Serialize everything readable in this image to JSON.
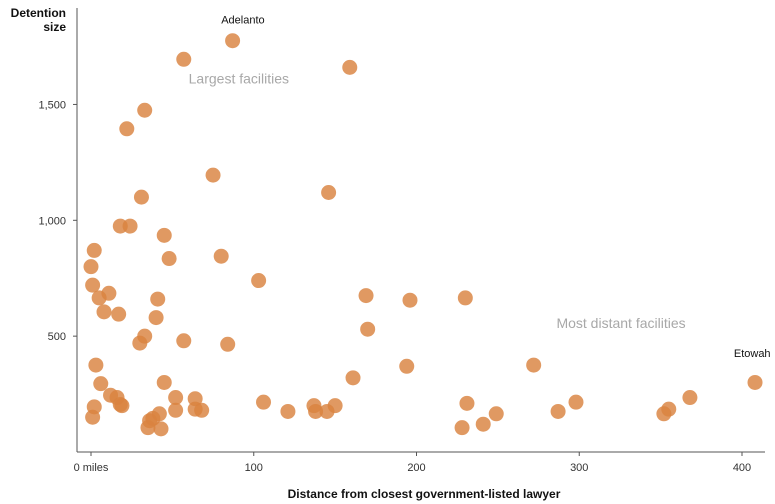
{
  "chart_data": {
    "type": "scatter",
    "ylabel_lines": [
      "Detention",
      "size"
    ],
    "xlabel": "Distance from closest government-listed lawyer",
    "xlim": [
      0,
      410
    ],
    "ylim": [
      0,
      1800
    ],
    "xticks": [
      {
        "value": 0,
        "label": "0 miles"
      },
      {
        "value": 100,
        "label": "100"
      },
      {
        "value": 200,
        "label": "200"
      },
      {
        "value": 300,
        "label": "300"
      },
      {
        "value": 400,
        "label": "400"
      }
    ],
    "yticks": [
      {
        "value": 500,
        "label": "500"
      },
      {
        "value": 1000,
        "label": "1,000"
      },
      {
        "value": 1500,
        "label": "1,500"
      }
    ],
    "annotations": [
      {
        "text": "Largest facilities",
        "x": 60,
        "y": 1590,
        "style": "big"
      },
      {
        "text": "Most distant facilities",
        "x": 286,
        "y": 535,
        "style": "big"
      },
      {
        "text": "Adelanto",
        "x": 80,
        "y": 1850,
        "style": "small"
      },
      {
        "text": "Etowah",
        "x": 395,
        "y": 410,
        "style": "small"
      }
    ],
    "points": [
      [
        87,
        1775
      ],
      [
        57,
        1695
      ],
      [
        159,
        1660
      ],
      [
        33,
        1475
      ],
      [
        22,
        1395
      ],
      [
        75,
        1195
      ],
      [
        146,
        1120
      ],
      [
        31,
        1100
      ],
      [
        18,
        975
      ],
      [
        24,
        975
      ],
      [
        45,
        935
      ],
      [
        2,
        870
      ],
      [
        48,
        835
      ],
      [
        80,
        845
      ],
      [
        0,
        800
      ],
      [
        1,
        720
      ],
      [
        103,
        740
      ],
      [
        5,
        665
      ],
      [
        11,
        685
      ],
      [
        41,
        660
      ],
      [
        169,
        675
      ],
      [
        196,
        655
      ],
      [
        230,
        665
      ],
      [
        8,
        605
      ],
      [
        17,
        595
      ],
      [
        40,
        580
      ],
      [
        170,
        530
      ],
      [
        33,
        500
      ],
      [
        30,
        470
      ],
      [
        57,
        480
      ],
      [
        84,
        465
      ],
      [
        3,
        375
      ],
      [
        194,
        370
      ],
      [
        272,
        375
      ],
      [
        161,
        320
      ],
      [
        408,
        300
      ],
      [
        6,
        295
      ],
      [
        45,
        300
      ],
      [
        12,
        245
      ],
      [
        16,
        235
      ],
      [
        52,
        235
      ],
      [
        64,
        230
      ],
      [
        18,
        205
      ],
      [
        2,
        195
      ],
      [
        19,
        200
      ],
      [
        106,
        215
      ],
      [
        137,
        200
      ],
      [
        150,
        200
      ],
      [
        231,
        210
      ],
      [
        298,
        215
      ],
      [
        368,
        235
      ],
      [
        52,
        180
      ],
      [
        64,
        185
      ],
      [
        68,
        180
      ],
      [
        121,
        175
      ],
      [
        138,
        175
      ],
      [
        145,
        175
      ],
      [
        249,
        165
      ],
      [
        287,
        175
      ],
      [
        355,
        185
      ],
      [
        42,
        165
      ],
      [
        1,
        150
      ],
      [
        38,
        145
      ],
      [
        36,
        135
      ],
      [
        352,
        165
      ],
      [
        35,
        105
      ],
      [
        43,
        100
      ],
      [
        241,
        120
      ],
      [
        228,
        105
      ]
    ]
  }
}
